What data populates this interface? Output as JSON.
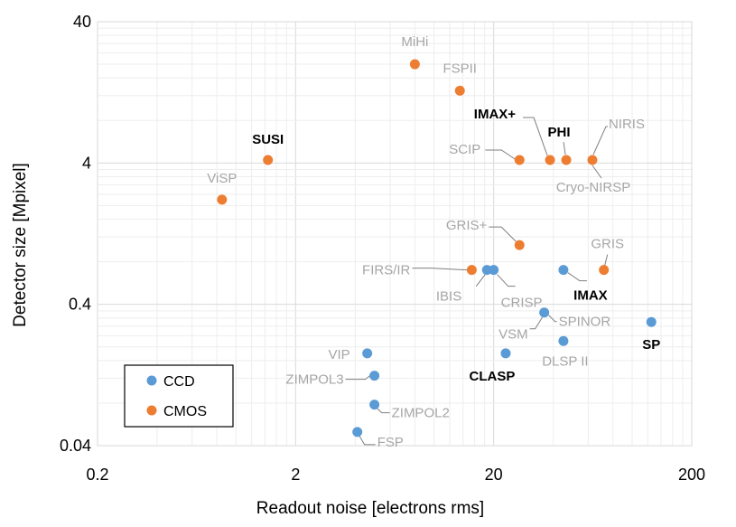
{
  "chart_data": {
    "type": "scatter",
    "xlabel": "Readout noise [electrons rms]",
    "ylabel": "Detector size [Mpixel]",
    "xscale": "log",
    "yscale": "log",
    "xlim": [
      0.2,
      200
    ],
    "ylim": [
      0.04,
      40
    ],
    "xticks": [
      0.2,
      2,
      20,
      200
    ],
    "xtick_labels": [
      "0.2",
      "2",
      "20",
      "200"
    ],
    "yticks": [
      0.04,
      0.4,
      4,
      40
    ],
    "ytick_labels": [
      "0.04",
      "0.4",
      "4",
      "40"
    ],
    "grid": true,
    "legend": {
      "position": "bottom-left",
      "entries": [
        "CCD",
        "CMOS"
      ]
    },
    "colors": {
      "CCD": "#5b9bd5",
      "CMOS": "#ed7d31",
      "label_gray": "#a6a6a6",
      "label_bold": "#000000"
    },
    "series": [
      {
        "name": "CCD",
        "points": [
          {
            "label": "FSP",
            "x": 4.1,
            "y": 0.05,
            "bold": false
          },
          {
            "label": "ZIMPOL2",
            "x": 5.0,
            "y": 0.078,
            "bold": false
          },
          {
            "label": "ZIMPOL3",
            "x": 5.0,
            "y": 0.125,
            "bold": false
          },
          {
            "label": "VIP",
            "x": 4.6,
            "y": 0.18,
            "bold": false
          },
          {
            "label": "IBIS",
            "x": 18.5,
            "y": 0.7,
            "bold": false
          },
          {
            "label": "CRISP",
            "x": 20,
            "y": 0.7,
            "bold": false
          },
          {
            "label": "CLASP",
            "x": 23,
            "y": 0.18,
            "bold": true
          },
          {
            "label": "VSM",
            "x": 36,
            "y": 0.35,
            "bold": false
          },
          {
            "label": "SPINOR",
            "x": 36,
            "y": 0.35,
            "bold": false
          },
          {
            "label": "DLSP II",
            "x": 45,
            "y": 0.22,
            "bold": false
          },
          {
            "label": "IMAX",
            "x": 45,
            "y": 0.7,
            "bold": true
          },
          {
            "label": "SP",
            "x": 125,
            "y": 0.3,
            "bold": true
          }
        ]
      },
      {
        "name": "CMOS",
        "points": [
          {
            "label": "ViSP",
            "x": 0.85,
            "y": 2.2,
            "bold": false
          },
          {
            "label": "SUSI",
            "x": 1.45,
            "y": 4.2,
            "bold": true
          },
          {
            "label": "MiHi",
            "x": 8.0,
            "y": 20,
            "bold": false
          },
          {
            "label": "FSPII",
            "x": 13.5,
            "y": 13,
            "bold": false
          },
          {
            "label": "FIRS/IR",
            "x": 15.5,
            "y": 0.7,
            "bold": false
          },
          {
            "label": "SCIP",
            "x": 27,
            "y": 4.2,
            "bold": false
          },
          {
            "label": "GRIS+",
            "x": 27,
            "y": 1.05,
            "bold": false
          },
          {
            "label": "IMAX+",
            "x": 38.5,
            "y": 4.2,
            "bold": true
          },
          {
            "label": "PHI",
            "x": 46.5,
            "y": 4.2,
            "bold": true
          },
          {
            "label": "NIRIS",
            "x": 63,
            "y": 4.2,
            "bold": false
          },
          {
            "label": "Cryo-NIRSP",
            "x": 63,
            "y": 4.2,
            "bold": false
          },
          {
            "label": "GRIS",
            "x": 72,
            "y": 0.7,
            "bold": false
          }
        ]
      }
    ]
  }
}
